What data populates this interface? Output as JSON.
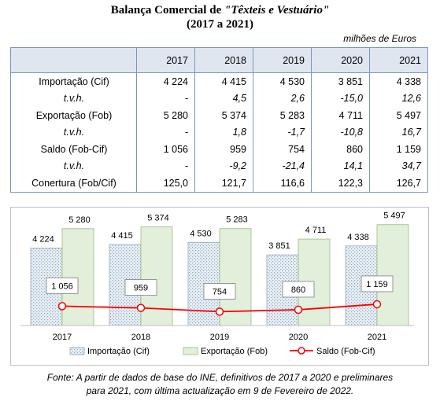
{
  "title_line1": "Balança Comercial de",
  "title_quoted": "Têxteis e Vestuário",
  "title_line2": "(2017 a 2021)",
  "unit": "milhões de Euros",
  "table": {
    "years": [
      "2017",
      "2018",
      "2019",
      "2020",
      "2021"
    ],
    "rows": [
      {
        "label": "Importação (Cif)",
        "italic": false,
        "values": [
          "4 224",
          "4 415",
          "4 530",
          "3 851",
          "4 338"
        ]
      },
      {
        "label": "t.v.h.",
        "italic": true,
        "values": [
          "-",
          "4,5",
          "2,6",
          "-15,0",
          "12,6"
        ]
      },
      {
        "label": "Exportação (Fob)",
        "italic": false,
        "values": [
          "5 280",
          "5 374",
          "5 283",
          "4 711",
          "5 497"
        ]
      },
      {
        "label": "t.v.h.",
        "italic": true,
        "values": [
          "-",
          "1,8",
          "-1,7",
          "-10,8",
          "16,7"
        ]
      },
      {
        "label": "Saldo (Fob-Cif)",
        "italic": false,
        "values": [
          "1 056",
          "959",
          "754",
          "860",
          "1 159"
        ]
      },
      {
        "label": "t.v.h.",
        "italic": true,
        "values": [
          "-",
          "-9,2",
          "-21,4",
          "14,1",
          "34,7"
        ]
      },
      {
        "label": "Conertura (Fob/Cif)",
        "italic": false,
        "values": [
          "125,0",
          "121,7",
          "116,6",
          "122,3",
          "126,7"
        ]
      }
    ]
  },
  "chart_data": {
    "type": "bar",
    "categories": [
      "2017",
      "2018",
      "2019",
      "2020",
      "2021"
    ],
    "series": [
      {
        "name": "Importação (Cif)",
        "kind": "bar",
        "values": [
          4224,
          4415,
          4530,
          3851,
          4338
        ],
        "labels": [
          "4 224",
          "4 415",
          "4 530",
          "3 851",
          "4 338"
        ],
        "color": "#dce6ef"
      },
      {
        "name": "Exportação (Fob)",
        "kind": "bar",
        "values": [
          5280,
          5374,
          5283,
          4711,
          5497
        ],
        "labels": [
          "5 280",
          "5 374",
          "5 283",
          "4 711",
          "5 497"
        ],
        "color": "#e2efda"
      },
      {
        "name": "Saldo (Fob-Cif)",
        "kind": "line",
        "values": [
          1056,
          959,
          754,
          860,
          1159
        ],
        "labels": [
          "1 056",
          "959",
          "754",
          "860",
          "1 159"
        ],
        "color": "#ff0000"
      }
    ],
    "ylim": [
      0,
      6000
    ],
    "legend_position": "bottom",
    "grid": false
  },
  "source_line1": "Fonte: A partir de dados de base do INE, definitivos de 2017 a 2020 e preliminares",
  "source_line2": "para 2021, com última actualização em  9 de Fevereiro  de 2022."
}
